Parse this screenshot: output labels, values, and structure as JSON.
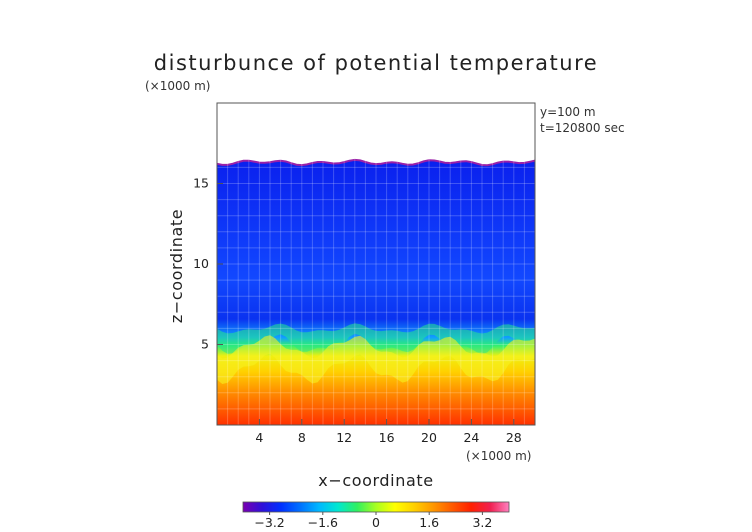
{
  "chart_data": {
    "type": "heatmap",
    "title": "disturbunce of potential temperature",
    "units_label": "(×1000 m)",
    "xlabel": "x−coordinate",
    "ylabel": "z−coordinate",
    "x_unit_label": "(×1000 m)",
    "annotations": [
      "y=100  m",
      "t=120800 sec"
    ],
    "xlim": [
      0,
      30
    ],
    "ylim": [
      0,
      20
    ],
    "x_ticks": [
      4,
      8,
      12,
      16,
      20,
      24,
      28
    ],
    "x_tick_labels": [
      "4",
      "8",
      "12",
      "16",
      "20",
      "24",
      "28"
    ],
    "y_ticks": [
      5,
      10,
      15
    ],
    "y_tick_labels": [
      "5",
      "10",
      "15"
    ],
    "top_of_data_km": 16.3,
    "colorbar": {
      "range": [
        -4,
        4
      ],
      "ticks": [
        -3.2,
        -1.6,
        0,
        1.6,
        3.2
      ],
      "tick_labels": [
        "−3.2",
        "−1.6",
        "0",
        "1.6",
        "3.2"
      ],
      "colors": [
        "#7a00b0",
        "#3010d8",
        "#0030ff",
        "#0070ff",
        "#00b8ff",
        "#00e8d0",
        "#30f060",
        "#a8ff20",
        "#ffff00",
        "#ffd000",
        "#ff9800",
        "#ff5a00",
        "#ff2000",
        "#f02050",
        "#ff80c0"
      ]
    },
    "grid": true
  }
}
